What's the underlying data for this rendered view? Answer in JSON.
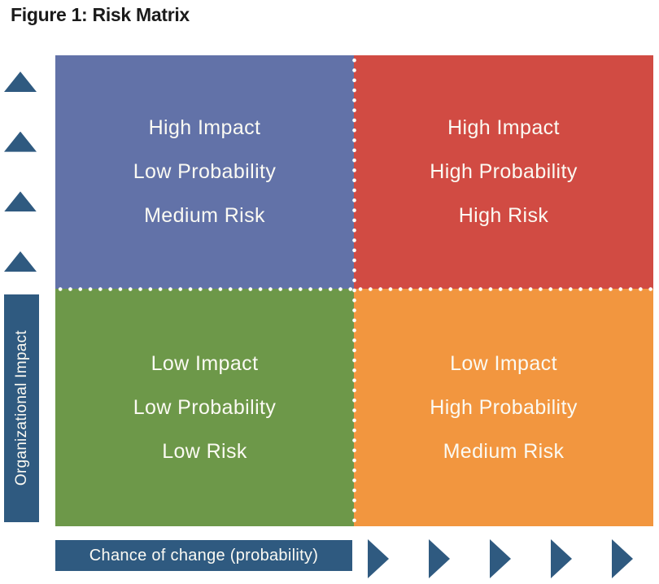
{
  "title": "Figure 1: Risk Matrix",
  "colors": {
    "quadrant_blue": "#6272A8",
    "quadrant_red": "#D14B43",
    "quadrant_green": "#6D9849",
    "quadrant_orange": "#F2963F",
    "axis_dark_blue": "#2F5A80",
    "divider_dots": "#FFFFFF",
    "quadrant_text": "#FBFAF3",
    "title_text": "#1B1B1B"
  },
  "axes": {
    "y_label": "Organizational Impact",
    "x_label": "Chance of change (probability)",
    "y_arrow_count": 4,
    "x_arrow_count": 5
  },
  "quadrants": [
    {
      "position": "top-left",
      "color": "#6272A8",
      "lines": [
        "High Impact",
        "Low Probability",
        "Medium Risk"
      ]
    },
    {
      "position": "top-right",
      "color": "#D14B43",
      "lines": [
        "High Impact",
        "High Probability",
        "High Risk"
      ]
    },
    {
      "position": "bottom-left",
      "color": "#6D9849",
      "lines": [
        "Low Impact",
        "Low Probability",
        "Low Risk"
      ]
    },
    {
      "position": "bottom-right",
      "color": "#F2963F",
      "lines": [
        "Low Impact",
        "High Probability",
        "Medium Risk"
      ]
    }
  ]
}
